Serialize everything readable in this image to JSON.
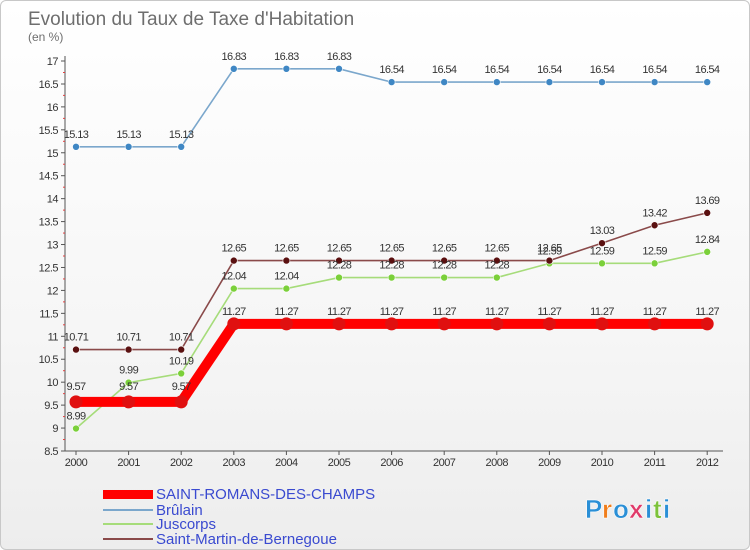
{
  "title": "Evolution du Taux de Taxe d'Habitation",
  "subtitle": "(en %)",
  "logo": "Proxiti",
  "chart_data": {
    "type": "line",
    "title": "Evolution du Taux de Taxe d'Habitation",
    "ylabel": "(en %)",
    "xlabel": "",
    "x": [
      "2000",
      "2001",
      "2002",
      "2003",
      "2004",
      "2005",
      "2006",
      "2007",
      "2008",
      "2009",
      "2010",
      "2011",
      "2012"
    ],
    "ylim": [
      8.5,
      17
    ],
    "yticks": [
      "8.5",
      "9",
      "9.5",
      "10",
      "10.5",
      "11",
      "11.5",
      "12",
      "12.5",
      "13",
      "13.5",
      "14",
      "14.5",
      "15",
      "15.5",
      "16",
      "16.5",
      "17"
    ],
    "grid": false,
    "legend_placement": "bottom-left",
    "series": [
      {
        "name": "SAINT-ROMANS-DES-CHAMPS",
        "color": "#ff0000",
        "marker": "#e01010",
        "values": [
          9.57,
          9.57,
          9.57,
          11.27,
          11.27,
          11.27,
          11.27,
          11.27,
          11.27,
          11.27,
          11.27,
          11.27,
          11.27
        ],
        "labels": [
          "9.57",
          "9.57",
          "9.57",
          "11.27",
          "11.27",
          "11.27",
          "11.27",
          "11.27",
          "11.27",
          "11.27",
          "11.27",
          "11.27",
          "11.27"
        ]
      },
      {
        "name": "Brûlain",
        "color": "#7ba7cc",
        "marker": "#3f87c4",
        "values": [
          15.13,
          15.13,
          15.13,
          16.83,
          16.83,
          16.83,
          16.54,
          16.54,
          16.54,
          16.54,
          16.54,
          16.54,
          16.54
        ],
        "labels": [
          "15.13",
          "15.13",
          "15.13",
          "16.83",
          "16.83",
          "16.83",
          "16.54",
          "16.54",
          "16.54",
          "16.54",
          "16.54",
          "16.54",
          "16.54"
        ]
      },
      {
        "name": "Juscorps",
        "color": "#a6dc7a",
        "marker": "#7bd03a",
        "values": [
          8.99,
          9.99,
          10.19,
          12.04,
          12.04,
          12.28,
          12.28,
          12.28,
          12.28,
          12.59,
          12.59,
          12.59,
          12.84
        ],
        "labels": [
          "8.99",
          "9.99",
          "10.19",
          "12.04",
          "12.04",
          "12.28",
          "12.28",
          "12.28",
          "12.28",
          "12.59",
          "12.59",
          "12.59",
          "12.84"
        ]
      },
      {
        "name": "Saint-Martin-de-Bernegoue",
        "color": "#8a4a4a",
        "marker": "#5a1010",
        "values": [
          10.71,
          10.71,
          10.71,
          12.65,
          12.65,
          12.65,
          12.65,
          12.65,
          12.65,
          12.65,
          13.03,
          13.42,
          13.69
        ],
        "labels": [
          "10.71",
          "10.71",
          "10.71",
          "12.65",
          "12.65",
          "12.65",
          "12.65",
          "12.65",
          "12.65",
          "12.65",
          "13.03",
          "13.42",
          "13.69"
        ]
      }
    ]
  }
}
